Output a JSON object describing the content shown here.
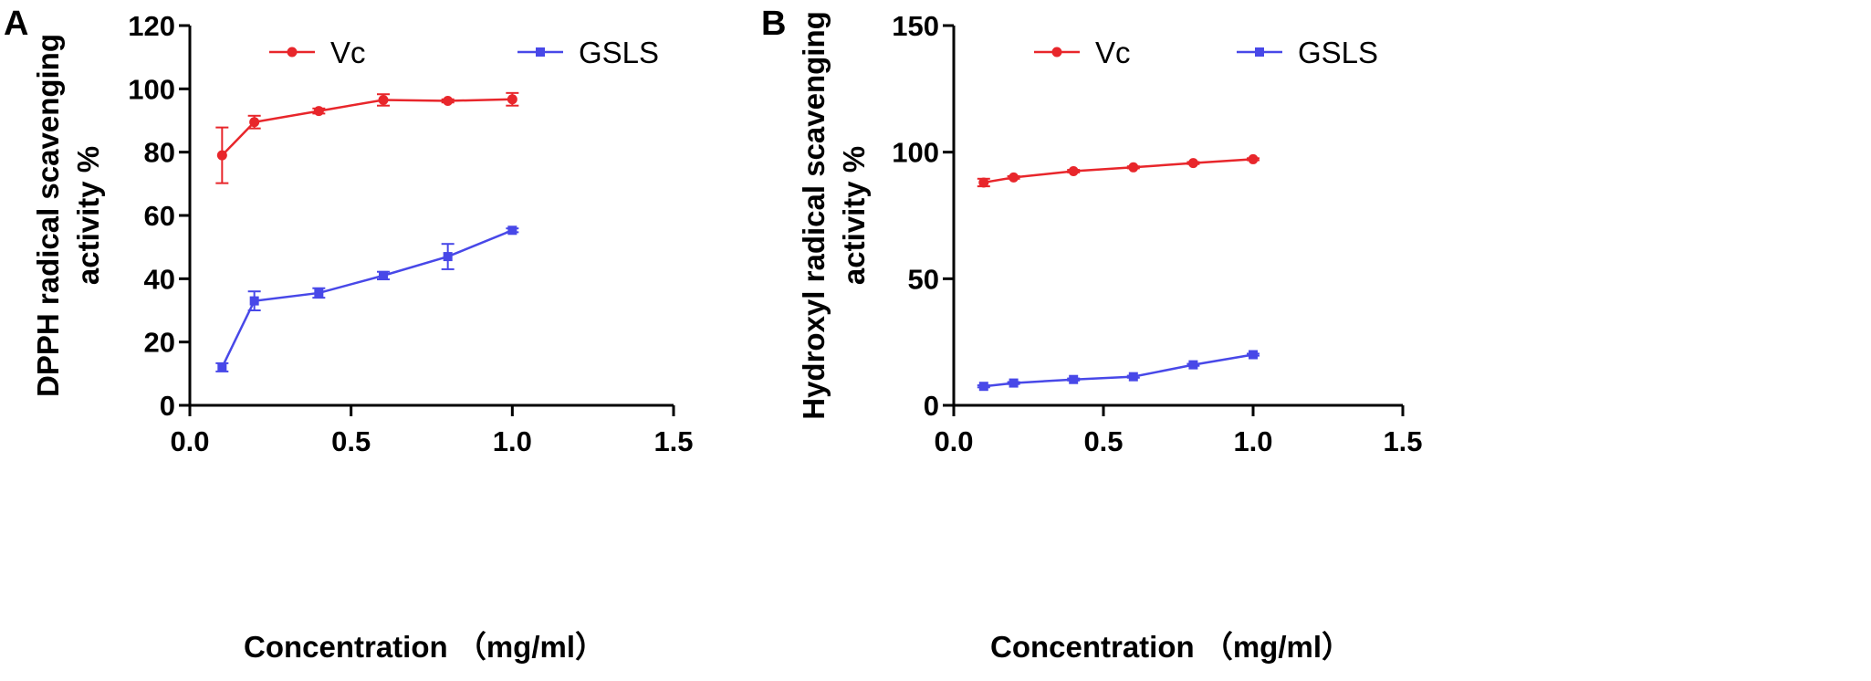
{
  "colors": {
    "red": "#e8262b",
    "blue": "#4848e8",
    "axis": "#000000"
  },
  "chart_data": [
    {
      "type": "line",
      "panel_label": "A",
      "xlabel": "Concentration （mg/ml）",
      "ylabel": [
        "DPPH radical scavenging",
        "activity %"
      ],
      "xlim": [
        0,
        1.5
      ],
      "ylim": [
        0,
        120
      ],
      "xticks": [
        "0.0",
        "0.5",
        "1.0",
        "1.5"
      ],
      "yticks": [
        "0",
        "20",
        "40",
        "60",
        "80",
        "100",
        "120"
      ],
      "legend_position": "top",
      "series": [
        {
          "name": "Vc",
          "color": "red",
          "marker": "circle",
          "x": [
            0.1,
            0.2,
            0.4,
            0.6,
            0.8,
            1.0
          ],
          "y": [
            79,
            89.5,
            93,
            96.5,
            96.2,
            96.7
          ],
          "err": [
            8.8,
            2.0,
            0.8,
            1.8,
            0.5,
            2.0
          ]
        },
        {
          "name": "GSLS",
          "color": "blue",
          "marker": "square",
          "x": [
            0.1,
            0.2,
            0.4,
            0.6,
            0.8,
            1.0
          ],
          "y": [
            12,
            33,
            35.5,
            41,
            47,
            55.3
          ],
          "err": [
            1.3,
            3.0,
            1.5,
            1.2,
            4.0,
            0.6
          ]
        }
      ]
    },
    {
      "type": "line",
      "panel_label": "B",
      "xlabel": "Concentration （mg/ml）",
      "ylabel": [
        "Hydroxyl radical scavenging",
        "activity %"
      ],
      "xlim": [
        0,
        1.5
      ],
      "ylim": [
        0,
        150
      ],
      "xticks": [
        "0.0",
        "0.5",
        "1.0",
        "1.5"
      ],
      "yticks": [
        "0",
        "50",
        "100",
        "150"
      ],
      "legend_position": "top",
      "series": [
        {
          "name": "Vc",
          "color": "red",
          "marker": "circle",
          "x": [
            0.1,
            0.2,
            0.4,
            0.6,
            0.8,
            1.0
          ],
          "y": [
            88,
            90,
            92.5,
            94,
            95.7,
            97.2
          ],
          "err": [
            1.5,
            0.5,
            0.5,
            0.4,
            0.4,
            0.4
          ]
        },
        {
          "name": "GSLS",
          "color": "blue",
          "marker": "square",
          "x": [
            0.1,
            0.2,
            0.4,
            0.6,
            0.8,
            1.0
          ],
          "y": [
            7.5,
            8.8,
            10.2,
            11.3,
            16,
            20
          ],
          "err": [
            0.4,
            0.4,
            0.4,
            0.4,
            0.4,
            0.4
          ]
        }
      ]
    }
  ]
}
